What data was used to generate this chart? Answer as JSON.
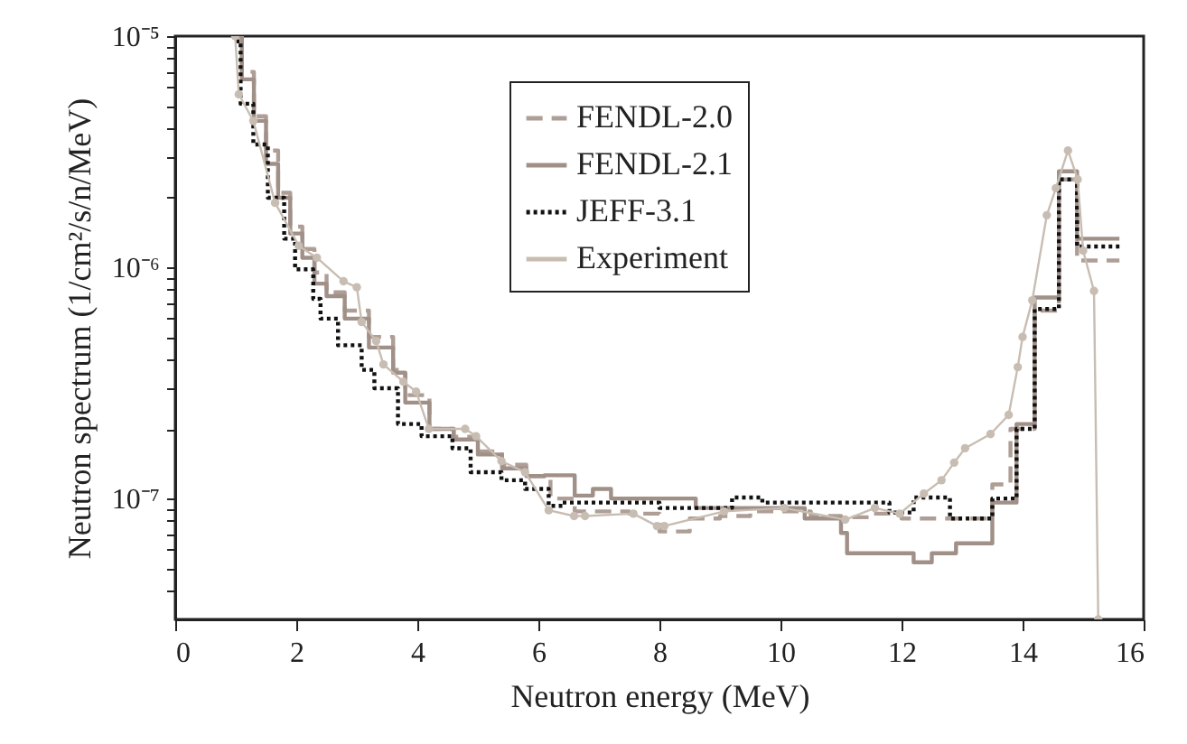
{
  "chart_data": {
    "type": "line",
    "xlabel": "Neutron energy (MeV)",
    "ylabel": "Neutron spectrum (1/cm²/s/n/MeV)",
    "xlim": [
      0,
      16
    ],
    "xticks": [
      0,
      2,
      4,
      6,
      8,
      10,
      12,
      14,
      16
    ],
    "ylim": [
      3e-08,
      1e-05
    ],
    "log": true,
    "yticks": [
      {
        "value": 1e-05,
        "label": "10⁻⁵"
      },
      {
        "value": 9e-06,
        "label": null
      },
      {
        "value": 8e-06,
        "label": null
      },
      {
        "value": 7e-06,
        "label": null
      },
      {
        "value": 6e-06,
        "label": null
      },
      {
        "value": 5e-06,
        "label": null
      },
      {
        "value": 4e-06,
        "label": null
      },
      {
        "value": 3e-06,
        "label": null
      },
      {
        "value": 2e-06,
        "label": null
      },
      {
        "value": 1e-06,
        "label": "10⁻⁶"
      },
      {
        "value": 9e-07,
        "label": null
      },
      {
        "value": 8e-07,
        "label": null
      },
      {
        "value": 7e-07,
        "label": null
      },
      {
        "value": 6e-07,
        "label": null
      },
      {
        "value": 5e-07,
        "label": null
      },
      {
        "value": 4e-07,
        "label": null
      },
      {
        "value": 3e-07,
        "label": null
      },
      {
        "value": 2e-07,
        "label": null
      },
      {
        "value": 1e-07,
        "label": "10⁻⁷"
      },
      {
        "value": 9e-08,
        "label": null
      },
      {
        "value": 8e-08,
        "label": null
      },
      {
        "value": 7e-08,
        "label": null
      },
      {
        "value": 6e-08,
        "label": null
      },
      {
        "value": 5e-08,
        "label": null
      },
      {
        "value": 4e-08,
        "label": null
      }
    ],
    "grid": false,
    "legend": "top right",
    "series": [
      {
        "name": "FENDL-2.0",
        "type": "step",
        "line_style": "dashed",
        "color": "#ae9e96",
        "x": [
          1.0,
          1.1,
          1.3,
          1.5,
          1.7,
          1.9,
          2.1,
          2.3,
          2.5,
          2.8,
          3.2,
          3.6,
          3.8,
          4.2,
          4.6,
          5.0,
          5.4,
          5.8,
          6.2,
          6.6,
          7.0,
          7.5,
          8.0,
          8.5,
          9.0,
          9.5,
          10.0,
          10.5,
          11.0,
          11.5,
          12.0,
          12.5,
          13.0,
          13.5,
          13.8,
          14.2,
          14.6,
          14.9,
          15.6
        ],
        "values": [
          1e-05,
          7e-06,
          4.5e-06,
          3.2e-06,
          2.1e-06,
          1.5e-06,
          1.2e-06,
          9.5e-07,
          7.8e-07,
          6.5e-07,
          5e-07,
          3.6e-07,
          2.8e-07,
          2e-07,
          1.85e-07,
          1.6e-07,
          1.4e-07,
          1.25e-07,
          1e-07,
          8.8e-08,
          8.8e-08,
          8.6e-08,
          7.2e-08,
          8.2e-08,
          8.4e-08,
          8.8e-08,
          8.8e-08,
          8.4e-08,
          8.3e-08,
          8.6e-08,
          8.2e-08,
          8.2e-08,
          8.2e-08,
          1.15e-07,
          2e-07,
          6.5e-07,
          2.4e-06,
          1.07e-06,
          1.07e-06
        ]
      },
      {
        "name": "FENDL-2.1",
        "type": "step",
        "line_style": "solid",
        "color": "#a09088",
        "x": [
          1.0,
          1.1,
          1.3,
          1.5,
          1.7,
          1.9,
          2.1,
          2.3,
          2.5,
          2.8,
          3.2,
          3.6,
          3.8,
          4.2,
          4.6,
          5.0,
          5.4,
          5.8,
          6.1,
          6.6,
          6.9,
          7.2,
          8.0,
          8.6,
          10.4,
          11.0,
          11.1,
          12.2,
          12.5,
          12.9,
          13.5,
          13.9,
          14.2,
          14.6,
          14.9,
          15.6
        ],
        "values": [
          1e-05,
          6.5e-06,
          4.3e-06,
          2.8e-06,
          2e-06,
          1.4e-06,
          1.1e-06,
          8.5e-07,
          7.5e-07,
          6e-07,
          4.5e-07,
          3.5e-07,
          2.6e-07,
          2e-07,
          1.8e-07,
          1.55e-07,
          1.35e-07,
          1.25e-07,
          1.26e-07,
          1.03e-07,
          1.1e-07,
          1e-07,
          1e-07,
          9.1e-08,
          8.2e-08,
          7.1e-08,
          5.8e-08,
          5.3e-08,
          5.8e-08,
          6.4e-08,
          9.6e-08,
          2.1e-07,
          7.4e-07,
          2.6e-06,
          1.33e-06,
          1.33e-06
        ]
      },
      {
        "name": "JEFF-3.1",
        "type": "step",
        "line_style": "dotted",
        "color": "#111111",
        "x": [
          1.0,
          1.08,
          1.29,
          1.53,
          1.8,
          1.98,
          2.28,
          2.4,
          2.69,
          3.08,
          3.29,
          3.68,
          4.07,
          4.58,
          4.88,
          5.39,
          5.78,
          6.17,
          6.4,
          8.0,
          9.2,
          9.7,
          11.8,
          12.2,
          12.8,
          13.5,
          13.9,
          14.2,
          14.6,
          14.9,
          15.6
        ],
        "values": [
          9.5e-06,
          5.1e-06,
          3.4e-06,
          2e-06,
          1.33e-06,
          9.8e-07,
          7.3e-07,
          6e-07,
          4.6e-07,
          3.6e-07,
          3e-07,
          2.1e-07,
          1.86e-07,
          1.65e-07,
          1.3e-07,
          1.2e-07,
          1.1e-07,
          9.3e-08,
          9.6e-08,
          9.1e-08,
          1.01e-07,
          9.6e-08,
          8.7e-08,
          1.01e-07,
          8.2e-08,
          1e-07,
          2e-07,
          6.6e-07,
          2.4e-06,
          1.23e-06,
          1.23e-06
        ]
      },
      {
        "name": "Experiment",
        "type": "line",
        "marker": "circle",
        "line_style": "solid",
        "color": "#c8bdb2",
        "x": [
          0.99,
          1.05,
          1.29,
          1.65,
          2.04,
          2.34,
          2.78,
          3.0,
          3.08,
          3.32,
          3.44,
          3.77,
          3.98,
          4.19,
          4.79,
          4.97,
          5.39,
          5.78,
          6.17,
          6.59,
          6.77,
          7.57,
          7.96,
          8.08,
          9.07,
          10.06,
          11.07,
          11.56,
          11.97,
          12.37,
          12.66,
          12.87,
          13.05,
          13.47,
          13.77,
          13.92,
          14.0,
          14.16,
          14.4,
          14.55,
          14.75,
          14.91,
          15.0,
          15.18,
          15.25
        ],
        "values": [
          1e-05,
          5.6e-06,
          4.3e-06,
          1.9e-06,
          1.24e-06,
          1.1e-06,
          8.7e-07,
          8.2e-07,
          5.8e-07,
          4.8e-07,
          3.8e-07,
          3.2e-07,
          2.9e-07,
          2e-07,
          2e-07,
          1.86e-07,
          1.45e-07,
          1.3e-07,
          8.9e-08,
          8.4e-08,
          8.4e-08,
          8.6e-08,
          7.6e-08,
          7.6e-08,
          8.8e-08,
          9.1e-08,
          8.1e-08,
          9.1e-08,
          8.6e-08,
          1.05e-07,
          1.2e-07,
          1.43e-07,
          1.65e-07,
          1.9e-07,
          2.3e-07,
          3.7e-07,
          5e-07,
          7.2e-07,
          1.68e-06,
          2.2e-06,
          3.2e-06,
          2.4e-06,
          1.18e-06,
          7.9e-07,
          3e-08
        ]
      }
    ]
  }
}
